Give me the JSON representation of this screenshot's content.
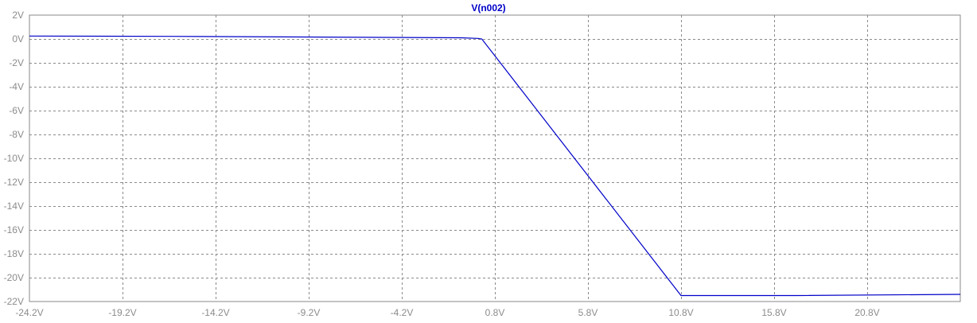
{
  "chart_data": {
    "type": "line",
    "title": "V(n002)",
    "xlabel": "",
    "ylabel": "",
    "xlim": [
      -24.2,
      25.8
    ],
    "ylim": [
      -22,
      2
    ],
    "x_ticks": [
      -24.2,
      -19.2,
      -14.2,
      -9.2,
      -4.2,
      0.8,
      5.8,
      10.8,
      15.8,
      20.8
    ],
    "x_tick_labels": [
      "-24.2V",
      "-19.2V",
      "-14.2V",
      "-9.2V",
      "-4.2V",
      "0.8V",
      "5.8V",
      "10.8V",
      "15.8V",
      "20.8V"
    ],
    "y_ticks": [
      2,
      0,
      -2,
      -4,
      -6,
      -8,
      -10,
      -12,
      -14,
      -16,
      -18,
      -20,
      -22
    ],
    "y_tick_labels": [
      "2V",
      "0V",
      "-2V",
      "-4V",
      "-6V",
      "-8V",
      "-10V",
      "-12V",
      "-14V",
      "-16V",
      "-18V",
      "-20V",
      "-22V"
    ],
    "grid": true,
    "series": [
      {
        "name": "V(n002)",
        "color": "#0000c8",
        "x": [
          -24.2,
          -16.7,
          -1.0,
          -0.1,
          0.1,
          10.8,
          17.0,
          25.8
        ],
        "y": [
          0.25,
          0.22,
          0.1,
          0.05,
          0.0,
          -21.5,
          -21.5,
          -21.4
        ]
      }
    ]
  },
  "colors": {
    "background": "#ffffff",
    "axis": "#8a8a8a",
    "grid": "#8a8a8a",
    "trace": "#0000c8",
    "tick_text": "#8c8c8c"
  }
}
